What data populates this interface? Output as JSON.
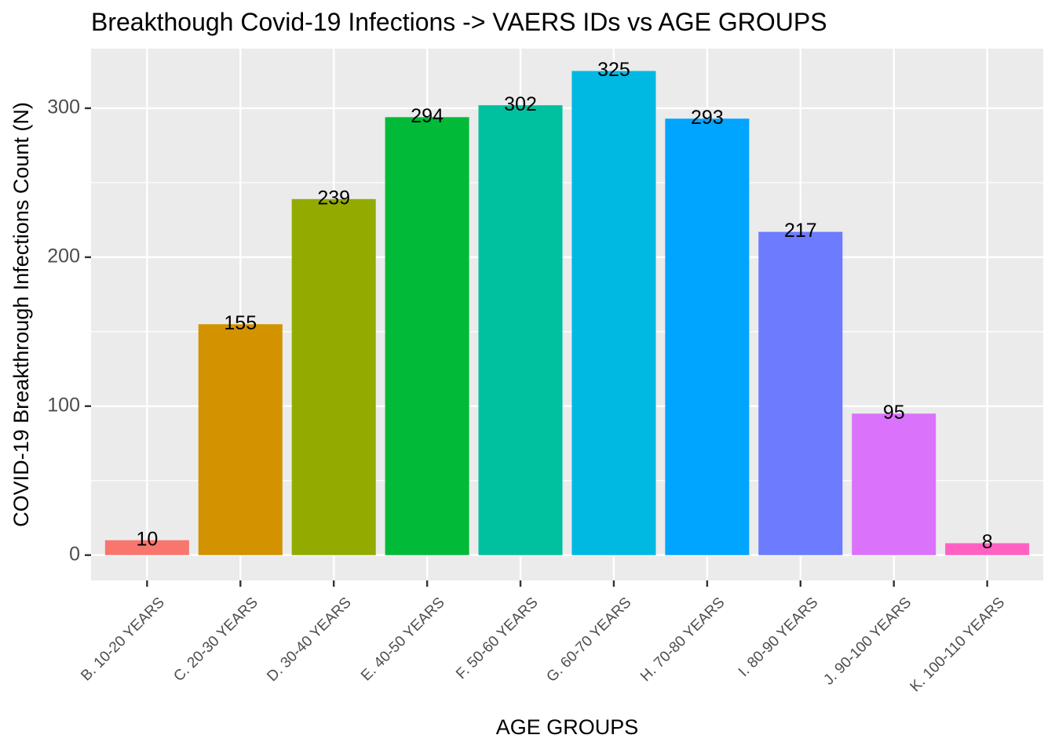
{
  "chart_data": {
    "type": "bar",
    "title": "Breakthough Covid-19 Infections -> VAERS IDs vs AGE GROUPS",
    "xlabel": "AGE GROUPS",
    "ylabel": "COVID-19 Breakthrough Infections Count (N)",
    "categories": [
      "B. 10-20 YEARS",
      "C. 20-30 YEARS",
      "D. 30-40 YEARS",
      "E. 40-50 YEARS",
      "F. 50-60 YEARS",
      "G. 60-70 YEARS",
      "H. 70-80 YEARS",
      "I. 80-90 YEARS",
      "J. 90-100 YEARS",
      "K. 100-110 YEARS"
    ],
    "values": [
      10,
      155,
      239,
      294,
      302,
      325,
      293,
      217,
      95,
      8
    ],
    "colors": [
      "#F8766D",
      "#D39200",
      "#93AA00",
      "#00BA38",
      "#00C19F",
      "#00B9E3",
      "#00A5FF",
      "#6D7BFF",
      "#DB72FB",
      "#FF61C3"
    ],
    "ylim": [
      -17,
      340
    ],
    "yticks": [
      0,
      100,
      200,
      300
    ],
    "grid": true,
    "legend": "none",
    "panel_background": "#EBEBEB"
  }
}
